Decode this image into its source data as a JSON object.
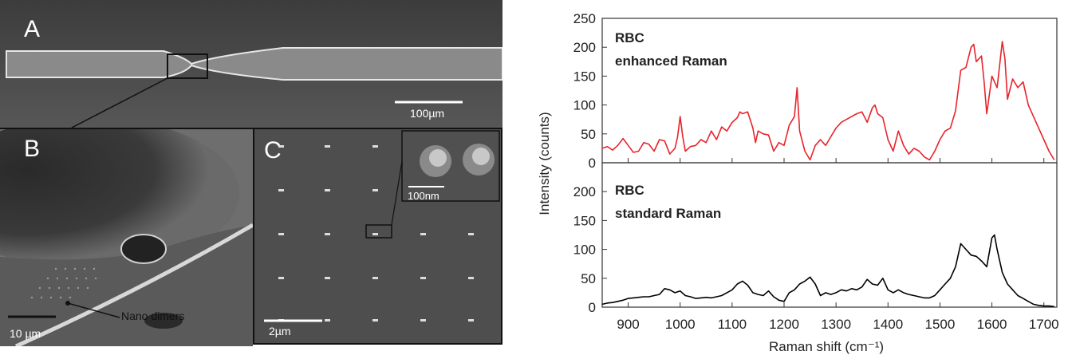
{
  "panels": {
    "a": {
      "letter": "A",
      "scale": "100µm"
    },
    "b": {
      "letter": "B",
      "scale": "10 µm",
      "annotation": "Nano dimers"
    },
    "c": {
      "letter": "C",
      "scale": "2µm",
      "inset_scale": "100nm"
    }
  },
  "colors": {
    "enhanced": "#e8232b",
    "standard": "#000000",
    "sem_bg": "#4a4a4a"
  },
  "chart_data": {
    "type": "line",
    "xlabel": "Raman shift (cm⁻¹)",
    "ylabel": "Intensity (counts)",
    "xlim": [
      850,
      1725
    ],
    "xticks": [
      900,
      1000,
      1100,
      1200,
      1300,
      1400,
      1500,
      1600,
      1700
    ],
    "yticks": [
      0,
      50,
      100,
      150,
      200,
      250
    ],
    "ylim": [
      0,
      250
    ],
    "layout": "two stacked panels sharing the x axis",
    "series": [
      {
        "name": "RBC enhanced Raman",
        "label_line1": "RBC",
        "label_line2": "enhanced Raman",
        "color": "#e8232b",
        "x": [
          850,
          860,
          870,
          880,
          890,
          900,
          910,
          920,
          930,
          940,
          950,
          960,
          970,
          980,
          990,
          995,
          1000,
          1005,
          1010,
          1020,
          1030,
          1040,
          1050,
          1060,
          1070,
          1080,
          1090,
          1100,
          1110,
          1115,
          1120,
          1130,
          1140,
          1145,
          1150,
          1160,
          1170,
          1180,
          1190,
          1200,
          1210,
          1220,
          1225,
          1230,
          1240,
          1250,
          1260,
          1270,
          1280,
          1290,
          1300,
          1310,
          1320,
          1330,
          1340,
          1350,
          1360,
          1370,
          1375,
          1380,
          1390,
          1400,
          1410,
          1420,
          1430,
          1440,
          1450,
          1460,
          1470,
          1480,
          1490,
          1500,
          1510,
          1520,
          1530,
          1540,
          1550,
          1560,
          1565,
          1570,
          1580,
          1585,
          1590,
          1600,
          1610,
          1620,
          1625,
          1630,
          1640,
          1650,
          1660,
          1670,
          1680,
          1690,
          1700,
          1710,
          1720
        ],
        "y": [
          25,
          28,
          22,
          30,
          42,
          30,
          18,
          20,
          35,
          32,
          20,
          40,
          38,
          15,
          25,
          45,
          80,
          45,
          20,
          28,
          30,
          40,
          35,
          55,
          40,
          62,
          55,
          70,
          78,
          88,
          85,
          88,
          60,
          35,
          55,
          50,
          48,
          20,
          35,
          30,
          65,
          80,
          130,
          55,
          20,
          5,
          30,
          40,
          30,
          45,
          60,
          70,
          75,
          80,
          85,
          88,
          70,
          95,
          100,
          85,
          78,
          40,
          20,
          55,
          30,
          15,
          25,
          20,
          10,
          5,
          20,
          40,
          55,
          60,
          90,
          160,
          165,
          200,
          205,
          175,
          185,
          140,
          85,
          150,
          130,
          210,
          180,
          110,
          145,
          130,
          140,
          100,
          80,
          60,
          40,
          20,
          5
        ]
      },
      {
        "name": "RBC standard Raman",
        "label_line1": "RBC",
        "label_line2": "standard Raman",
        "color": "#000000",
        "x": [
          850,
          860,
          870,
          880,
          890,
          900,
          910,
          920,
          930,
          940,
          950,
          960,
          970,
          980,
          990,
          1000,
          1010,
          1020,
          1030,
          1040,
          1050,
          1060,
          1070,
          1080,
          1090,
          1100,
          1110,
          1120,
          1130,
          1140,
          1150,
          1160,
          1170,
          1180,
          1190,
          1200,
          1210,
          1220,
          1230,
          1240,
          1250,
          1260,
          1270,
          1280,
          1290,
          1300,
          1310,
          1320,
          1330,
          1340,
          1350,
          1360,
          1370,
          1380,
          1390,
          1400,
          1410,
          1420,
          1430,
          1440,
          1450,
          1460,
          1470,
          1480,
          1490,
          1500,
          1510,
          1520,
          1530,
          1540,
          1550,
          1560,
          1570,
          1580,
          1590,
          1600,
          1605,
          1610,
          1620,
          1630,
          1640,
          1650,
          1660,
          1670,
          1680,
          1690,
          1700,
          1710,
          1720
        ],
        "y": [
          5,
          7,
          8,
          10,
          12,
          15,
          16,
          17,
          18,
          18,
          20,
          22,
          32,
          30,
          25,
          28,
          20,
          18,
          15,
          16,
          17,
          16,
          18,
          20,
          25,
          30,
          40,
          45,
          38,
          25,
          22,
          20,
          28,
          18,
          12,
          10,
          25,
          30,
          40,
          45,
          52,
          40,
          20,
          25,
          22,
          25,
          30,
          28,
          32,
          30,
          35,
          48,
          40,
          38,
          50,
          30,
          25,
          30,
          25,
          22,
          20,
          18,
          16,
          16,
          20,
          30,
          40,
          50,
          70,
          110,
          100,
          90,
          88,
          80,
          70,
          120,
          125,
          100,
          60,
          40,
          30,
          20,
          15,
          10,
          5,
          3,
          2,
          2,
          1
        ]
      }
    ]
  }
}
